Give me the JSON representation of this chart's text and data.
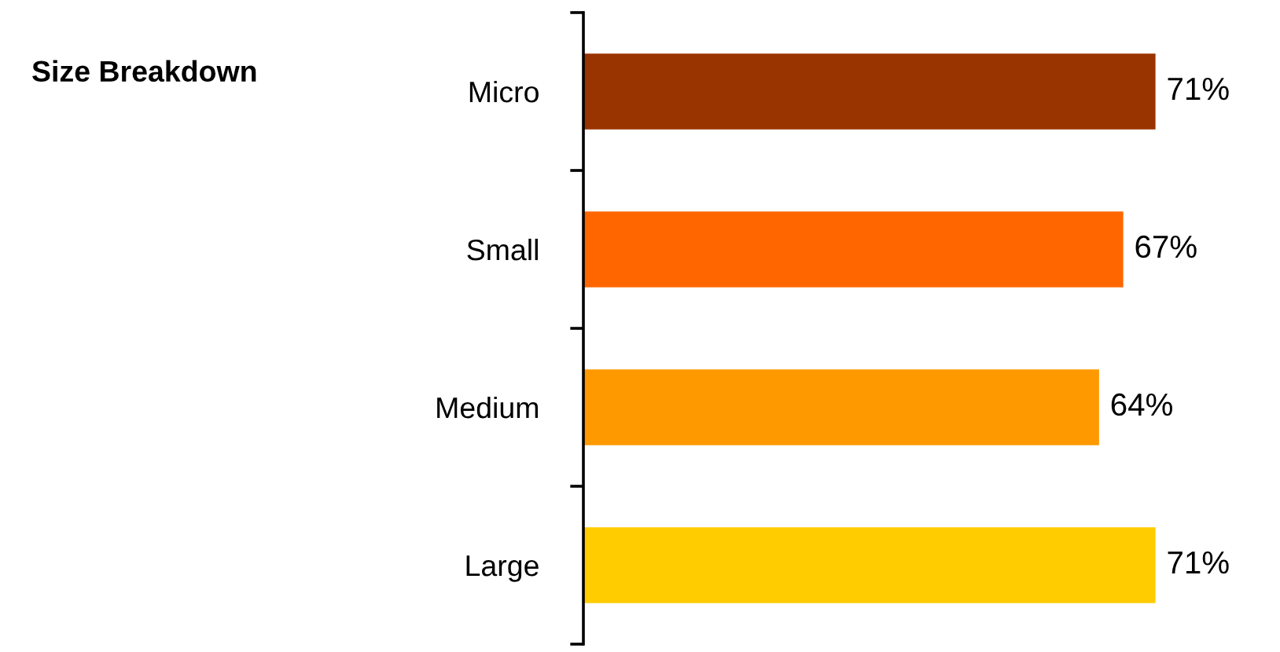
{
  "chart_data": {
    "type": "bar",
    "orientation": "horizontal",
    "title": "Size Breakdown",
    "categories": [
      "Micro",
      "Small",
      "Medium",
      "Large"
    ],
    "values": [
      71,
      67,
      64,
      71
    ],
    "colors": [
      "#993300",
      "#ff6600",
      "#ff9900",
      "#ffcc00"
    ],
    "value_labels": [
      "71%",
      "67%",
      "64%",
      "71%"
    ],
    "tick_labels": "y",
    "grid": false,
    "legend": false
  }
}
